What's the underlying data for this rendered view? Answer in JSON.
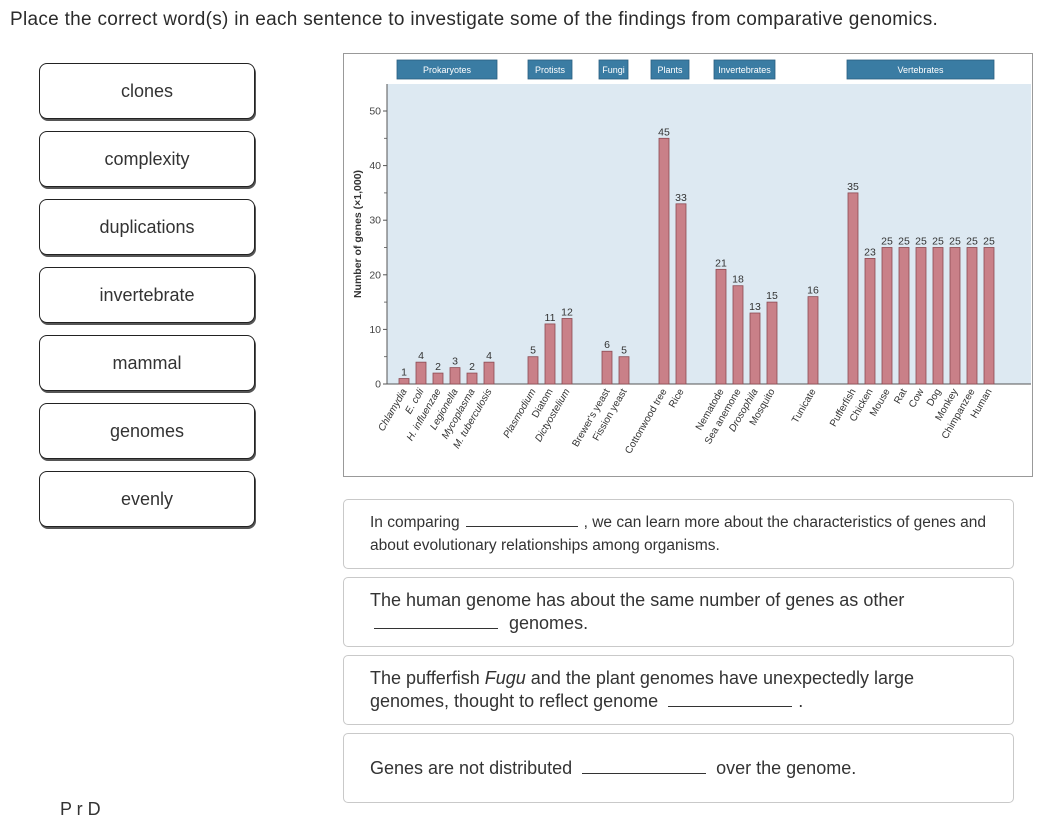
{
  "instruction": "Place the correct word(s) in each sentence to investigate some of the findings from comparative genomics.",
  "word_bank": [
    "clones",
    "complexity",
    "duplications",
    "invertebrate",
    "mammal",
    "genomes",
    "evenly"
  ],
  "sentences": [
    {
      "before": "In comparing",
      "after": ", we can learn more about the characteristics of genes and about evolutionary relationships among organisms.",
      "italic": "",
      "after_italic": ""
    },
    {
      "before": "The human genome has about the same number of genes as other",
      "after": "genomes.",
      "italic": "",
      "after_italic": ""
    },
    {
      "before": "The pufferfish",
      "italic": "Fugu",
      "after_italic": "and the plant genomes have unexpectedly large genomes, thought to reflect genome",
      "after": "."
    },
    {
      "before": "Genes are not distributed",
      "after": "over the genome.",
      "italic": "",
      "after_italic": ""
    }
  ],
  "bottom_text": "P      r   D",
  "chart_data": {
    "type": "bar",
    "title": "",
    "ylabel": "Number of genes (×1,000)",
    "xlabel": "",
    "ylim": [
      0,
      52
    ],
    "yticks": [
      0,
      10,
      20,
      30,
      40,
      50
    ],
    "grid": false,
    "groups": [
      {
        "name": "Prokaryotes",
        "categories": [
          "Chlamydia",
          "E. coli",
          "H. influenzae",
          "Legionella",
          "Mycoplasma",
          "M. tuberculosis"
        ],
        "values": [
          1,
          4,
          2,
          3,
          2,
          4
        ]
      },
      {
        "name": "Protists",
        "categories": [
          "Plasmodium",
          "Diatom",
          "Dictyostelium"
        ],
        "values": [
          5,
          11,
          12
        ]
      },
      {
        "name": "Fungi",
        "categories": [
          "Brewer's yeast",
          "Fission yeast"
        ],
        "values": [
          6,
          5
        ]
      },
      {
        "name": "Plants",
        "categories": [
          "Cottonwood tree",
          "Rice"
        ],
        "values": [
          45,
          33
        ]
      },
      {
        "name": "Invertebrates",
        "categories": [
          "Nematode",
          "Sea anemone",
          "Drosophila",
          "Mosquito"
        ],
        "values": [
          21,
          18,
          13,
          15
        ]
      },
      {
        "name": "Invertebrates",
        "categories": [
          "Tunicate"
        ],
        "values": [
          16
        ]
      },
      {
        "name": "Vertebrates",
        "categories": [
          "Pufferfish",
          "Chicken",
          "Mouse",
          "Rat",
          "Cow",
          "Dog",
          "Monkey",
          "Chimpanzee",
          "Human"
        ],
        "values": [
          35,
          23,
          25,
          25,
          25,
          25,
          25,
          25,
          25
        ]
      }
    ],
    "italic_categories": [
      "Chlamydia",
      "E. coli",
      "H. influenzae",
      "Legionella",
      "Mycoplasma",
      "M. tuberculosis",
      "Plasmodium",
      "Dictyostelium",
      "Drosophila"
    ],
    "header_labels": [
      "Prokaryotes",
      "Protists",
      "Fungi",
      "Plants",
      "Invertebrates",
      "Vertebrates"
    ],
    "colors": {
      "bar": "#c98088",
      "bar_stroke": "#8c4a52",
      "plot_bg": "#dde9f2",
      "header": "#3a7ca3",
      "axis": "#555555"
    }
  }
}
